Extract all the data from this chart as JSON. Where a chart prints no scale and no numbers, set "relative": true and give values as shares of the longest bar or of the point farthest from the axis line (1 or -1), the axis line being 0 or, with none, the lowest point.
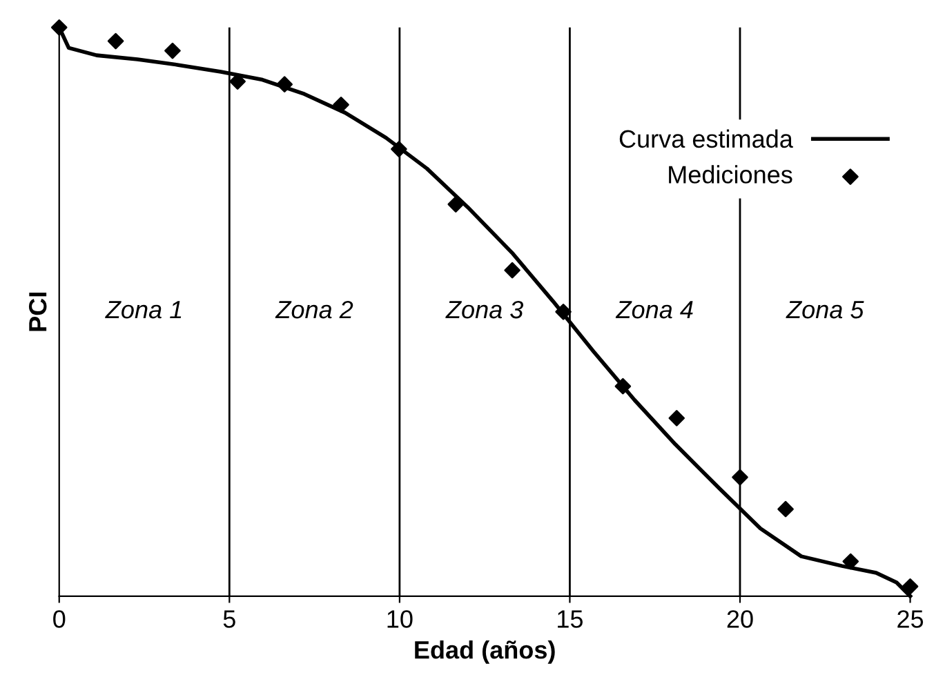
{
  "chart_data": {
    "type": "line",
    "relative": true,
    "xlabel": "Edad (años)",
    "ylabel": "PCI",
    "xlim": [
      0,
      25
    ],
    "xticks": [
      0,
      5,
      10,
      15,
      20,
      25
    ],
    "grid": false,
    "legend": "top right",
    "series": [
      {
        "name": "Curva estimada",
        "color": "#000000",
        "marker": "none",
        "line_style": "solid",
        "x": [
          0,
          0.28,
          1.1,
          2.3,
          3.5,
          4.75,
          5.97,
          7.2,
          8.4,
          9.6,
          10.8,
          12.0,
          13.3,
          14.5,
          15.7,
          16.9,
          18.1,
          19.4,
          20.6,
          21.8,
          23.0,
          24.0,
          24.6,
          25
        ],
        "values": [
          1.0,
          0.964,
          0.951,
          0.944,
          0.934,
          0.922,
          0.908,
          0.883,
          0.85,
          0.806,
          0.752,
          0.684,
          0.604,
          0.519,
          0.43,
          0.345,
          0.267,
          0.189,
          0.119,
          0.07,
          0.053,
          0.041,
          0.024,
          0
        ]
      },
      {
        "name": "Mediciones",
        "type": "scatter",
        "color": "#000000",
        "marker": "diamond",
        "x": [
          0,
          1.66,
          3.33,
          5.24,
          6.62,
          8.28,
          9.98,
          11.65,
          13.31,
          14.81,
          16.56,
          18.14,
          20.0,
          21.34,
          23.25,
          25
        ],
        "values": [
          1.0,
          0.976,
          0.959,
          0.905,
          0.9,
          0.864,
          0.786,
          0.689,
          0.573,
          0.5,
          0.369,
          0.313,
          0.209,
          0.153,
          0.061,
          0.017
        ]
      }
    ],
    "ref_lines": [
      {
        "axis": "x",
        "value": 5,
        "color": "#000000"
      },
      {
        "axis": "x",
        "value": 10,
        "color": "#000000"
      },
      {
        "axis": "x",
        "value": 15,
        "color": "#000000"
      },
      {
        "axis": "x",
        "value": 20,
        "color": "#000000"
      }
    ],
    "annotations": [
      "Zona 1",
      "Zona 2",
      "Zona 3",
      "Zona 4",
      "Zona 5"
    ]
  }
}
